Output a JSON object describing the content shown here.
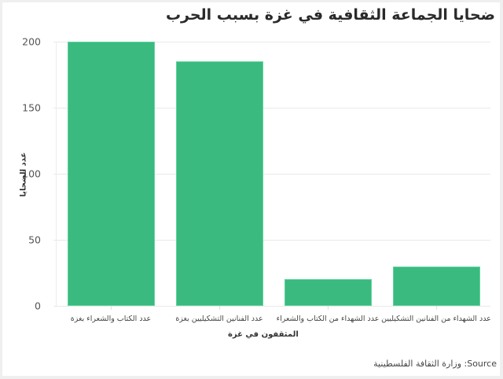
{
  "chart_data": {
    "type": "bar",
    "title": "ضحايا الجماعة الثقافية في غزة بسبب الحرب",
    "categories": [
      "عدد الكتاب والشعراء بغزة",
      "عدد الفنانين التشكيليين بغزة",
      "عدد الشهداء من الكتاب والشعراء",
      "عدد الشهداء من الفنانين التشكيليين"
    ],
    "values": [
      200,
      185,
      20,
      30
    ],
    "xlabel": "المثقفون في غزة",
    "ylabel": "عدد الضحايا",
    "ylim": [
      0,
      200
    ],
    "yticks": [
      0,
      50,
      100,
      150,
      200
    ],
    "grid": true,
    "legend": "none",
    "bar_color": "#3aba7f"
  },
  "source_text": "وزارة الثقافة الفلسطينية :Source"
}
